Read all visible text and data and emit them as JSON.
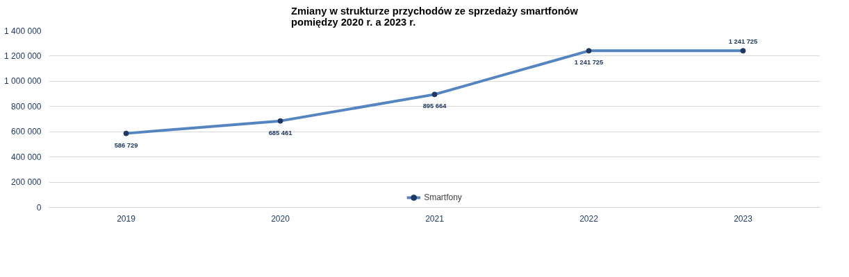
{
  "chart_data": {
    "type": "line",
    "title": "Zmiany w strukturze przychodów ze sprzedaży smartfonów\npomiędzy  2020 r. a  2023 r.",
    "categories": [
      "2019",
      "2020",
      "2021",
      "2022",
      "2023"
    ],
    "series": [
      {
        "name": "Smartfony",
        "color": "#5585c0",
        "values": [
          586729,
          685461,
          895664,
          1241725,
          1241725
        ],
        "value_labels": [
          "586 729",
          "685 461",
          "895 664",
          "1 241 725",
          "1 241 725"
        ]
      }
    ],
    "ylim": [
      0,
      1400000
    ],
    "yticks": [
      {
        "value": 0,
        "label": "0"
      },
      {
        "value": 200000,
        "label": "200 000"
      },
      {
        "value": 400000,
        "label": "400 000"
      },
      {
        "value": 600000,
        "label": "600 000"
      },
      {
        "value": 800000,
        "label": "800 000"
      },
      {
        "value": 1000000,
        "label": "1 000 000"
      },
      {
        "value": 1200000,
        "label": "1 200 000"
      },
      {
        "value": 1400000,
        "label": "1 400 000"
      }
    ],
    "grid": "y",
    "legend": "bottom",
    "marker": "circle",
    "line_style": "solid"
  }
}
